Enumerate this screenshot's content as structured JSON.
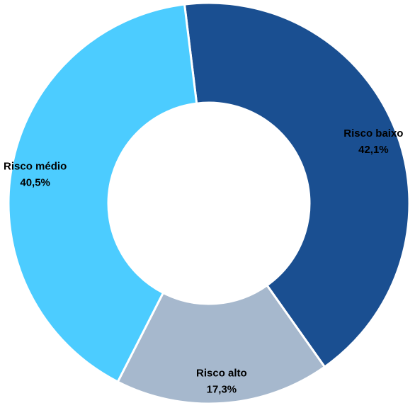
{
  "chart_data": {
    "type": "pie",
    "variant": "donut",
    "title": "",
    "legend": "none",
    "slices": [
      {
        "label": "Risco baixo",
        "value": 42.1,
        "value_label": "42,1%",
        "color": "#1a4f91"
      },
      {
        "label": "Risco alto",
        "value": 17.3,
        "value_label": "17,3%",
        "color": "#a6b8cd"
      },
      {
        "label": "Risco médio",
        "value": 40.5,
        "value_label": "40,5%",
        "color": "#4cccff"
      }
    ]
  }
}
